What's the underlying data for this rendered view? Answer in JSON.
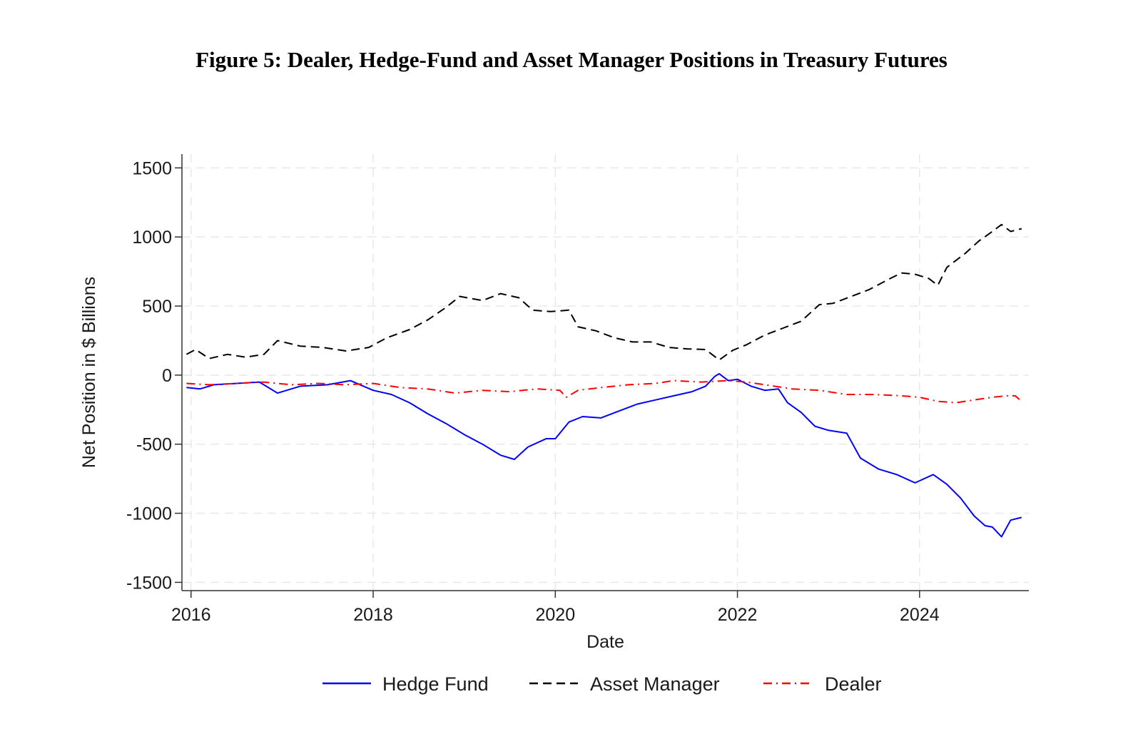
{
  "chart_data": {
    "type": "line",
    "title": "Figure 5: Dealer, Hedge-Fund and Asset Manager Positions in Treasury Futures",
    "xlabel": "Date",
    "ylabel": "Net Position in $ Billions",
    "xlim": [
      2015.9,
      2025.2
    ],
    "ylim": [
      -1560,
      1600
    ],
    "x_ticks": [
      2016,
      2018,
      2020,
      2022,
      2024
    ],
    "x_tick_labels": [
      "2016",
      "2018",
      "2020",
      "2022",
      "2024"
    ],
    "y_ticks": [
      1500,
      1000,
      500,
      0,
      -500,
      -1000,
      -1500
    ],
    "y_tick_labels": [
      "1500",
      "1000",
      "500",
      "0",
      "-500",
      "-1000",
      "-1500"
    ],
    "grid": true,
    "legend_position": "bottom",
    "series": [
      {
        "name": "Hedge Fund",
        "color": "#0000ff",
        "dash": "solid",
        "points": [
          [
            2015.95,
            -90
          ],
          [
            2016.1,
            -100
          ],
          [
            2016.25,
            -70
          ],
          [
            2016.5,
            -60
          ],
          [
            2016.75,
            -50
          ],
          [
            2016.95,
            -130
          ],
          [
            2017.2,
            -80
          ],
          [
            2017.5,
            -70
          ],
          [
            2017.75,
            -40
          ],
          [
            2018.0,
            -110
          ],
          [
            2018.2,
            -140
          ],
          [
            2018.4,
            -200
          ],
          [
            2018.6,
            -280
          ],
          [
            2018.8,
            -350
          ],
          [
            2019.0,
            -430
          ],
          [
            2019.2,
            -500
          ],
          [
            2019.4,
            -580
          ],
          [
            2019.55,
            -610
          ],
          [
            2019.7,
            -520
          ],
          [
            2019.9,
            -460
          ],
          [
            2020.0,
            -460
          ],
          [
            2020.15,
            -340
          ],
          [
            2020.3,
            -300
          ],
          [
            2020.5,
            -310
          ],
          [
            2020.7,
            -260
          ],
          [
            2020.9,
            -210
          ],
          [
            2021.1,
            -180
          ],
          [
            2021.3,
            -150
          ],
          [
            2021.5,
            -120
          ],
          [
            2021.65,
            -80
          ],
          [
            2021.75,
            -10
          ],
          [
            2021.8,
            10
          ],
          [
            2021.9,
            -40
          ],
          [
            2022.0,
            -30
          ],
          [
            2022.15,
            -80
          ],
          [
            2022.3,
            -110
          ],
          [
            2022.45,
            -100
          ],
          [
            2022.55,
            -200
          ],
          [
            2022.7,
            -270
          ],
          [
            2022.85,
            -370
          ],
          [
            2023.0,
            -400
          ],
          [
            2023.2,
            -420
          ],
          [
            2023.35,
            -600
          ],
          [
            2023.55,
            -680
          ],
          [
            2023.75,
            -720
          ],
          [
            2023.95,
            -780
          ],
          [
            2024.15,
            -720
          ],
          [
            2024.3,
            -790
          ],
          [
            2024.45,
            -890
          ],
          [
            2024.6,
            -1020
          ],
          [
            2024.72,
            -1090
          ],
          [
            2024.8,
            -1100
          ],
          [
            2024.9,
            -1170
          ],
          [
            2025.0,
            -1050
          ],
          [
            2025.12,
            -1030
          ]
        ]
      },
      {
        "name": "Asset Manager",
        "color": "#000000",
        "dash": "dash",
        "points": [
          [
            2015.95,
            150
          ],
          [
            2016.05,
            185
          ],
          [
            2016.2,
            120
          ],
          [
            2016.4,
            150
          ],
          [
            2016.6,
            130
          ],
          [
            2016.8,
            150
          ],
          [
            2016.95,
            250
          ],
          [
            2017.2,
            210
          ],
          [
            2017.45,
            200
          ],
          [
            2017.7,
            175
          ],
          [
            2017.95,
            200
          ],
          [
            2018.15,
            270
          ],
          [
            2018.4,
            330
          ],
          [
            2018.6,
            400
          ],
          [
            2018.8,
            490
          ],
          [
            2018.95,
            570
          ],
          [
            2019.2,
            540
          ],
          [
            2019.4,
            590
          ],
          [
            2019.6,
            560
          ],
          [
            2019.75,
            470
          ],
          [
            2019.95,
            460
          ],
          [
            2020.15,
            470
          ],
          [
            2020.25,
            350
          ],
          [
            2020.45,
            320
          ],
          [
            2020.65,
            270
          ],
          [
            2020.85,
            240
          ],
          [
            2021.05,
            240
          ],
          [
            2021.25,
            200
          ],
          [
            2021.45,
            190
          ],
          [
            2021.65,
            185
          ],
          [
            2021.8,
            110
          ],
          [
            2021.95,
            180
          ],
          [
            2022.1,
            220
          ],
          [
            2022.3,
            290
          ],
          [
            2022.5,
            340
          ],
          [
            2022.7,
            390
          ],
          [
            2022.9,
            510
          ],
          [
            2023.05,
            520
          ],
          [
            2023.25,
            570
          ],
          [
            2023.45,
            620
          ],
          [
            2023.65,
            690
          ],
          [
            2023.8,
            740
          ],
          [
            2023.95,
            730
          ],
          [
            2024.1,
            700
          ],
          [
            2024.2,
            650
          ],
          [
            2024.3,
            780
          ],
          [
            2024.5,
            880
          ],
          [
            2024.65,
            970
          ],
          [
            2024.8,
            1040
          ],
          [
            2024.9,
            1090
          ],
          [
            2025.0,
            1040
          ],
          [
            2025.12,
            1060
          ]
        ]
      },
      {
        "name": "Dealer",
        "color": "#ff0000",
        "dash": "dashdot",
        "points": [
          [
            2015.95,
            -60
          ],
          [
            2016.2,
            -70
          ],
          [
            2016.5,
            -60
          ],
          [
            2016.8,
            -50
          ],
          [
            2017.1,
            -70
          ],
          [
            2017.4,
            -60
          ],
          [
            2017.7,
            -70
          ],
          [
            2018.0,
            -60
          ],
          [
            2018.3,
            -90
          ],
          [
            2018.6,
            -100
          ],
          [
            2018.9,
            -130
          ],
          [
            2019.2,
            -110
          ],
          [
            2019.5,
            -120
          ],
          [
            2019.8,
            -100
          ],
          [
            2020.05,
            -110
          ],
          [
            2020.12,
            -160
          ],
          [
            2020.25,
            -110
          ],
          [
            2020.5,
            -90
          ],
          [
            2020.8,
            -70
          ],
          [
            2021.1,
            -60
          ],
          [
            2021.3,
            -40
          ],
          [
            2021.6,
            -50
          ],
          [
            2021.9,
            -40
          ],
          [
            2022.1,
            -50
          ],
          [
            2022.3,
            -70
          ],
          [
            2022.6,
            -100
          ],
          [
            2022.9,
            -110
          ],
          [
            2023.2,
            -140
          ],
          [
            2023.5,
            -140
          ],
          [
            2023.8,
            -150
          ],
          [
            2024.0,
            -160
          ],
          [
            2024.2,
            -190
          ],
          [
            2024.4,
            -200
          ],
          [
            2024.6,
            -180
          ],
          [
            2024.8,
            -160
          ],
          [
            2024.95,
            -150
          ],
          [
            2025.05,
            -150
          ],
          [
            2025.12,
            -190
          ]
        ]
      }
    ]
  }
}
